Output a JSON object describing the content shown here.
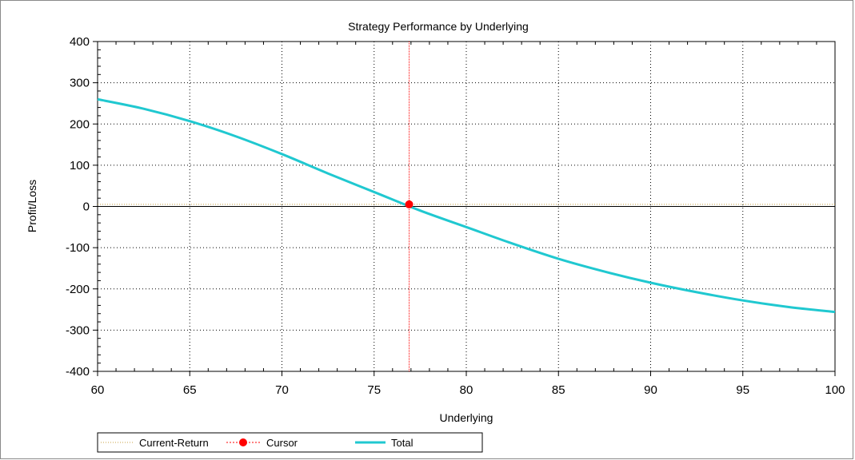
{
  "chart_data": {
    "type": "line",
    "title": "Strategy Performance by Underlying",
    "xlabel": "Underlying",
    "ylabel": "Profit/Loss",
    "xlim": [
      60,
      100
    ],
    "ylim": [
      -400,
      400
    ],
    "x_ticks": [
      60,
      65,
      70,
      75,
      80,
      85,
      90,
      95,
      100
    ],
    "y_ticks": [
      400,
      300,
      200,
      100,
      0,
      -100,
      -200,
      -300,
      -400
    ],
    "grid": true,
    "legend_position": "bottom-left",
    "series": [
      {
        "name": "Current-Return",
        "style": "dotted",
        "color": "#c8a040",
        "x": [
          60,
          100
        ],
        "y": [
          5,
          5
        ]
      },
      {
        "name": "Cursor",
        "style": "dotted-marker",
        "color": "#ff0000",
        "x": [
          76.9
        ],
        "y": [
          5
        ]
      },
      {
        "name": "Total",
        "style": "solid",
        "color": "#20c8d0",
        "x": [
          60,
          62.5,
          65,
          67.5,
          70,
          72.5,
          75,
          77.5,
          80,
          82.5,
          85,
          87.5,
          90,
          92.5,
          95,
          97.5,
          100
        ],
        "y": [
          260,
          237,
          207,
          170,
          127,
          80,
          35,
          -10,
          -50,
          -90,
          -127,
          -158,
          -185,
          -208,
          -228,
          -244,
          -256
        ]
      }
    ],
    "zero_line": 0,
    "cursor_x": 76.9
  }
}
